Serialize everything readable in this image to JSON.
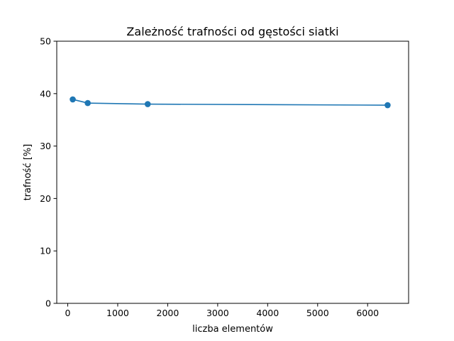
{
  "chart_data": {
    "type": "line",
    "title": "Zależność trafności od gęstości siatki",
    "xlabel": "liczba elementów",
    "ylabel": "trafność [%]",
    "xlim": [
      -220,
      6820
    ],
    "ylim": [
      0,
      50
    ],
    "xticks": [
      0,
      1000,
      2000,
      3000,
      4000,
      5000,
      6000
    ],
    "xtick_labels": [
      "0",
      "1000",
      "2000",
      "3000",
      "4000",
      "5000",
      "6000"
    ],
    "yticks": [
      0,
      10,
      20,
      30,
      40,
      50
    ],
    "ytick_labels": [
      "0",
      "10",
      "20",
      "30",
      "40",
      "50"
    ],
    "grid": false,
    "series": [
      {
        "color": "#1f77b4",
        "marker": "circle",
        "x": [
          100,
          400,
          1600,
          6400
        ],
        "y": [
          38.9,
          38.2,
          38.0,
          37.8
        ]
      }
    ]
  }
}
